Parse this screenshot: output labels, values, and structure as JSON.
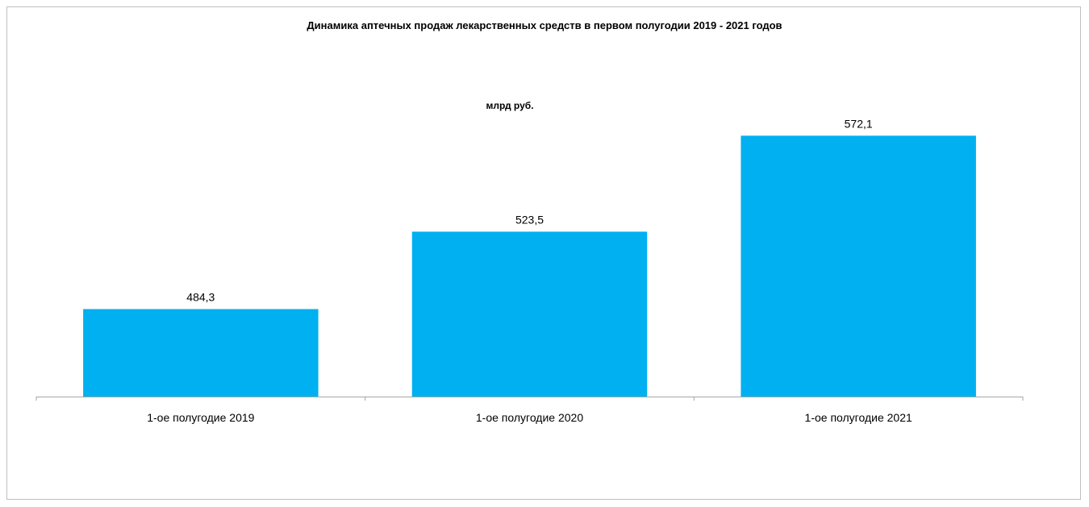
{
  "chart_data": {
    "type": "bar",
    "title": "Динамика аптечных продаж лекарственных средств в первом полугодии 2019 - 2021 годов",
    "subtitle": "млрд руб.",
    "categories": [
      "1-ое полугодие 2019",
      "1-ое полугодие 2020",
      "1-ое полугодие 2021"
    ],
    "values": [
      484.3,
      523.5,
      572.1
    ],
    "value_labels": [
      "484,3",
      "523,5",
      "572,1"
    ],
    "ylim": [
      440,
      600
    ],
    "grid": false,
    "legend": "none",
    "bar_color": "#00B0F0",
    "axis_color": "#a6a6a6"
  }
}
